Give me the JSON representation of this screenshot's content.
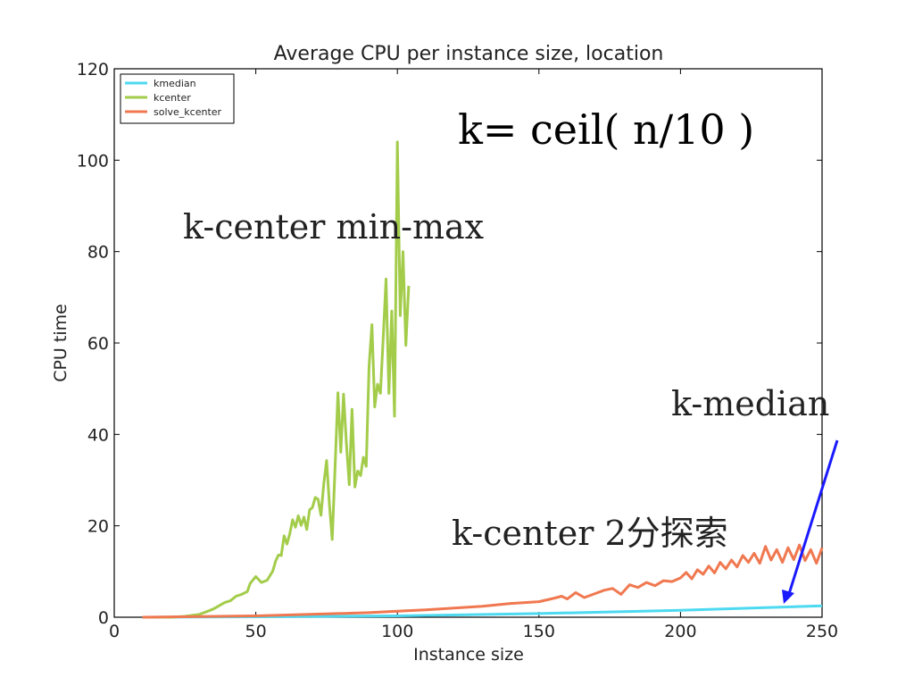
{
  "chart_data": {
    "type": "line",
    "title": "Average CPU per instance size, location",
    "xlabel": "Instance size",
    "ylabel": "CPU time",
    "xlim": [
      0,
      250
    ],
    "ylim": [
      0,
      120
    ],
    "xticks": [
      0,
      50,
      100,
      150,
      200,
      250
    ],
    "yticks": [
      0,
      20,
      40,
      60,
      80,
      100,
      120
    ],
    "grid": false,
    "legend_position": "top-left",
    "series": [
      {
        "name": "kmedian",
        "color": "#4dd9f0",
        "points": [
          [
            10,
            0
          ],
          [
            50,
            0.1
          ],
          [
            100,
            0.3
          ],
          [
            150,
            0.8
          ],
          [
            200,
            1.5
          ],
          [
            225,
            2.0
          ],
          [
            250,
            2.5
          ]
        ]
      },
      {
        "name": "kcenter",
        "color": "#a3cc4a",
        "points": [
          [
            10,
            0
          ],
          [
            20,
            0
          ],
          [
            25,
            0.2
          ],
          [
            30,
            0.6
          ],
          [
            33,
            1.3
          ],
          [
            35,
            1.8
          ],
          [
            37,
            2.5
          ],
          [
            39,
            3.2
          ],
          [
            41,
            3.6
          ],
          [
            43,
            4.6
          ],
          [
            45,
            5.0
          ],
          [
            47,
            5.6
          ],
          [
            48,
            7.4
          ],
          [
            50,
            8.9
          ],
          [
            52,
            7.6
          ],
          [
            54,
            8.1
          ],
          [
            56,
            10.1
          ],
          [
            57,
            12.3
          ],
          [
            58,
            13.6
          ],
          [
            59,
            13.5
          ],
          [
            60,
            17.8
          ],
          [
            61,
            16.0
          ],
          [
            62,
            18.3
          ],
          [
            63,
            21.3
          ],
          [
            64,
            19.7
          ],
          [
            65,
            22.2
          ],
          [
            66,
            20.1
          ],
          [
            67,
            21.9
          ],
          [
            68,
            19.2
          ],
          [
            69,
            23.5
          ],
          [
            70,
            24.0
          ],
          [
            71,
            26.2
          ],
          [
            72,
            25.8
          ],
          [
            73,
            22.3
          ],
          [
            74,
            29.1
          ],
          [
            75,
            34.3
          ],
          [
            76,
            24.6
          ],
          [
            77,
            17.0
          ],
          [
            78,
            32.8
          ],
          [
            79,
            49.1
          ],
          [
            80,
            36.1
          ],
          [
            81,
            48.8
          ],
          [
            82,
            38.0
          ],
          [
            83,
            29.0
          ],
          [
            84,
            45.5
          ],
          [
            85,
            28.5
          ],
          [
            86,
            32.0
          ],
          [
            87,
            31.0
          ],
          [
            88,
            35.0
          ],
          [
            89,
            33.0
          ],
          [
            90,
            55.0
          ],
          [
            91,
            64.0
          ],
          [
            92,
            46.0
          ],
          [
            93,
            51.0
          ],
          [
            94,
            49.0
          ],
          [
            95,
            61.0
          ],
          [
            96,
            74.0
          ],
          [
            97,
            49.0
          ],
          [
            98,
            67.0
          ],
          [
            99,
            44.0
          ],
          [
            100,
            104.0
          ],
          [
            101,
            66.0
          ],
          [
            102,
            80.0
          ],
          [
            103,
            59.5
          ],
          [
            104,
            72.5
          ]
        ]
      },
      {
        "name": "solve_kcenter",
        "color": "#f07850",
        "points": [
          [
            10,
            0
          ],
          [
            50,
            0.3
          ],
          [
            90,
            1.0
          ],
          [
            100,
            1.3
          ],
          [
            110,
            1.6
          ],
          [
            120,
            2.0
          ],
          [
            130,
            2.4
          ],
          [
            140,
            3.0
          ],
          [
            150,
            3.4
          ],
          [
            155,
            4.1
          ],
          [
            158,
            4.6
          ],
          [
            160,
            4.0
          ],
          [
            163,
            5.4
          ],
          [
            166,
            4.3
          ],
          [
            170,
            5.2
          ],
          [
            173,
            5.9
          ],
          [
            176,
            6.3
          ],
          [
            179,
            5.0
          ],
          [
            182,
            7.1
          ],
          [
            185,
            6.5
          ],
          [
            188,
            7.6
          ],
          [
            191,
            6.9
          ],
          [
            194,
            8.0
          ],
          [
            197,
            7.8
          ],
          [
            200,
            8.6
          ],
          [
            202,
            9.8
          ],
          [
            204,
            8.4
          ],
          [
            206,
            10.4
          ],
          [
            208,
            9.4
          ],
          [
            210,
            11.2
          ],
          [
            212,
            9.7
          ],
          [
            214,
            12.0
          ],
          [
            216,
            10.6
          ],
          [
            218,
            12.5
          ],
          [
            220,
            11.0
          ],
          [
            222,
            13.5
          ],
          [
            224,
            12.0
          ],
          [
            226,
            14.0
          ],
          [
            228,
            11.8
          ],
          [
            230,
            15.5
          ],
          [
            232,
            12.5
          ],
          [
            234,
            14.8
          ],
          [
            236,
            12.0
          ],
          [
            238,
            15.2
          ],
          [
            240,
            12.6
          ],
          [
            242,
            15.8
          ],
          [
            244,
            12.4
          ],
          [
            246,
            14.8
          ],
          [
            248,
            11.8
          ],
          [
            250,
            15.2
          ]
        ]
      }
    ]
  },
  "annotations": {
    "formula": "k= ceil( n/10 )",
    "minmax": "k-center   min-max",
    "kmedian": "k-median",
    "binary_search": "k-center 2分探索"
  },
  "arrow_color": "#1a1aff"
}
